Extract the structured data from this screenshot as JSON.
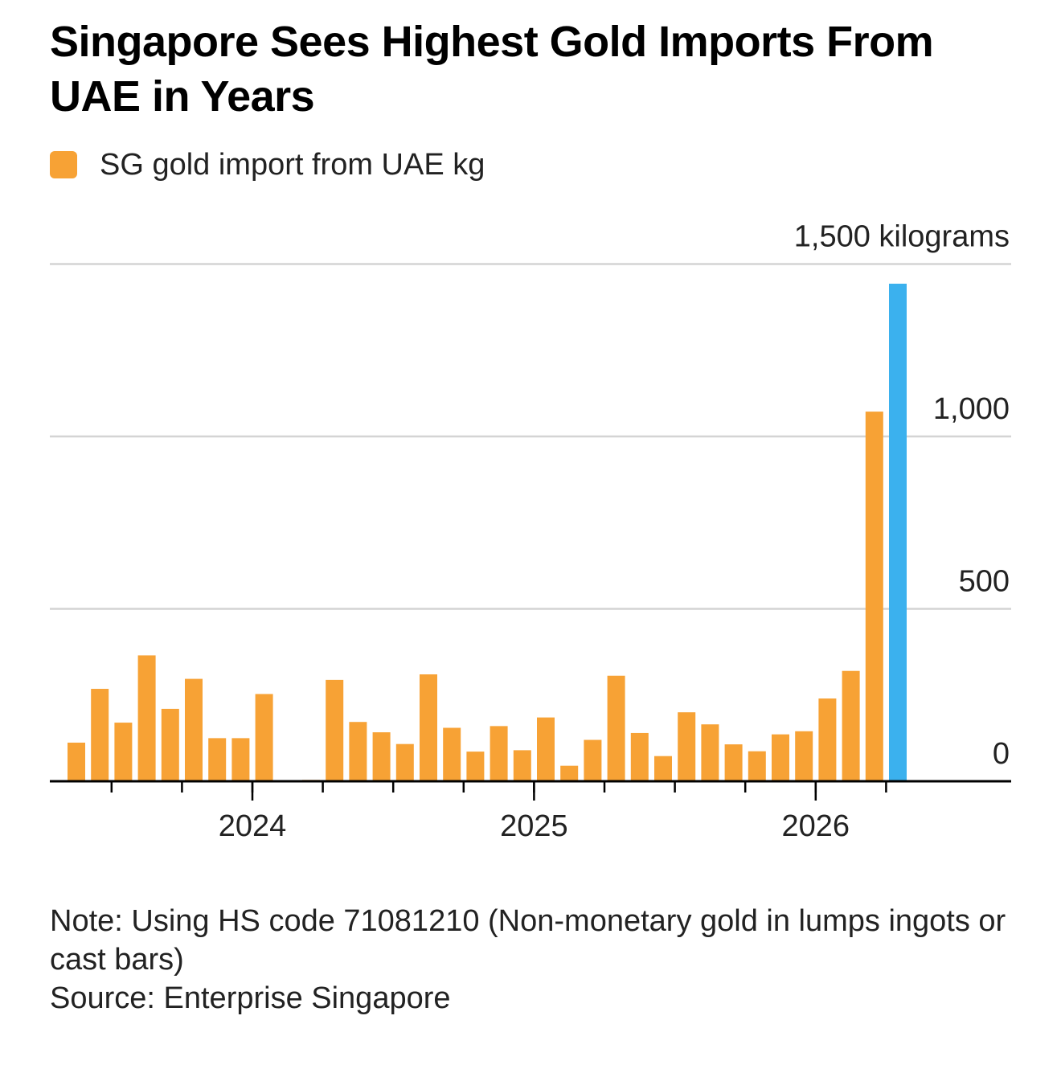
{
  "header": {
    "title": "Singapore Sees Highest Gold Imports From UAE in Years"
  },
  "legend": {
    "label": "SG gold import from UAE kg",
    "color": "#f7a235"
  },
  "colors": {
    "bar": "#f7a235",
    "highlight": "#3bb1ee",
    "grid": "#d4d4d4",
    "axis": "#000000"
  },
  "footer": {
    "note": "Note: Using HS code 71081210 (Non-monetary gold in lumps ingots or cast bars)",
    "source": "Source: Enterprise Singapore"
  },
  "chart_data": {
    "type": "bar",
    "x_start": "2023-05",
    "x_interval": "month",
    "series": [
      {
        "name": "SG gold import from UAE kg",
        "values": [
          112,
          268,
          170,
          365,
          210,
          297,
          125,
          125,
          253,
          0,
          4,
          294,
          172,
          142,
          108,
          310,
          155,
          86,
          160,
          90,
          185,
          45,
          120,
          306,
          140,
          73,
          200,
          165,
          107,
          87,
          136,
          145,
          240,
          320,
          1072,
          1443
        ]
      }
    ],
    "highlight_index": 35,
    "y_ticks": [
      {
        "value": 0,
        "label": "0"
      },
      {
        "value": 500,
        "label": "500"
      },
      {
        "value": 1000,
        "label": "1,000"
      },
      {
        "value": 1500,
        "label": "1,500 kilograms"
      }
    ],
    "x_labels": [
      {
        "value": "2024-01",
        "label": "2024"
      },
      {
        "value": "2025-01",
        "label": "2025"
      },
      {
        "value": "2026-01",
        "label": "2026"
      }
    ],
    "ylim": [
      0,
      1500
    ],
    "grid": true,
    "legend_position": "top-left"
  }
}
